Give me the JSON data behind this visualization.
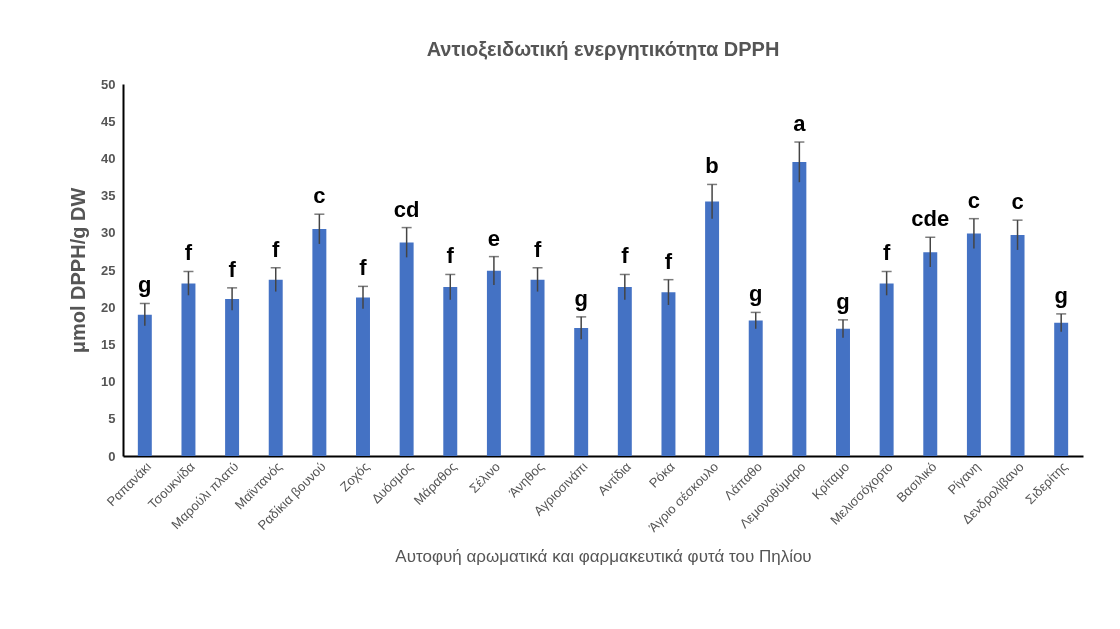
{
  "chart_data": {
    "type": "bar",
    "title": "Αντιοξειδωτική ενεργητικότητα DPPH",
    "xlabel": "Αυτοφυή αρωματικά και φαρμακευτικά φυτά του Πηλίου",
    "ylabel": "μmol DPPH/g DW",
    "categories": [
      "Ραπανάκι",
      "Τσουκνίδα",
      "Μαρούλι πλατύ",
      "Μαϊντανός",
      "Ραδίκια βουνού",
      "Ζοχός",
      "Δυόσμος",
      "Μάραθος",
      "Σέλινο",
      "Άνηθος",
      "Αγριοσινάπι",
      "Αντίδια",
      "Ρόκα",
      "Άγριο σέσκουλο",
      "Λάπαθο",
      "Λεμονοθύμαρο",
      "Κρίταμο",
      "Μελισσόχορτο",
      "Βασιλικό",
      "Ρίγανη",
      "Δενδρολίβανο",
      "Σιδερίτης"
    ],
    "values": [
      19,
      23.2,
      21.1,
      23.7,
      30.5,
      21.3,
      28.7,
      22.7,
      24.9,
      23.7,
      17.2,
      22.7,
      22,
      34.2,
      18.2,
      39.5,
      17.1,
      23.2,
      27.4,
      29.9,
      29.7,
      17.9
    ],
    "errors": [
      1.5,
      1.6,
      1.5,
      1.6,
      2,
      1.5,
      2,
      1.7,
      1.9,
      1.6,
      1.5,
      1.7,
      1.7,
      2.3,
      1.1,
      2.7,
      1.2,
      1.6,
      2,
      2,
      2,
      1.2
    ],
    "value_labels": [
      "g",
      "f",
      "f",
      "f",
      "c",
      "f",
      "cd",
      "f",
      "e",
      "f",
      "g",
      "f",
      "f",
      "b",
      "g",
      "a",
      "g",
      "f",
      "cde",
      "c",
      "c",
      "g"
    ],
    "color": "#4472c4",
    "ylim": [
      0,
      50
    ],
    "yticks": [
      0,
      5,
      10,
      15,
      20,
      25,
      30,
      35,
      40,
      45,
      50
    ],
    "grid": false
  }
}
